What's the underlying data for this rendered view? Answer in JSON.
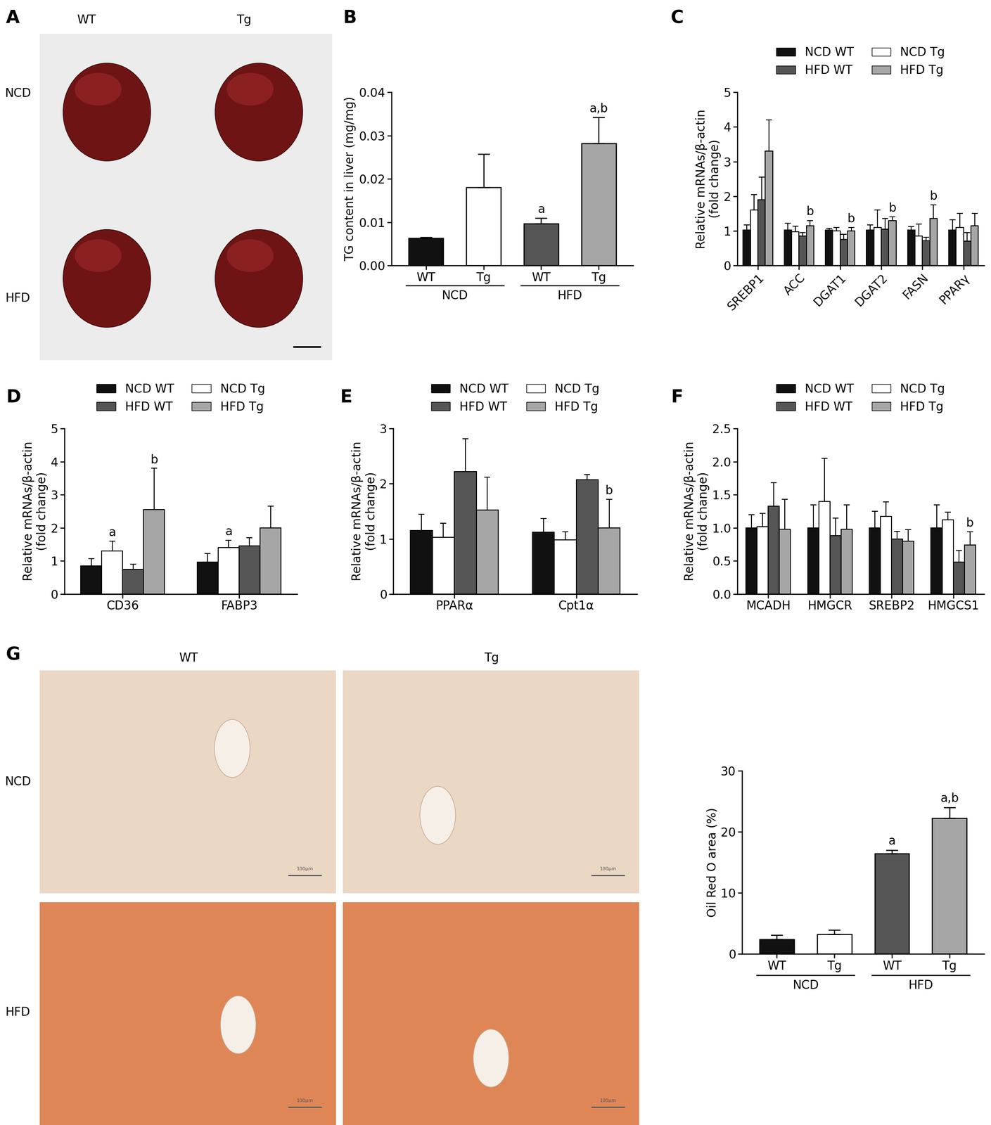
{
  "chart_data": [
    {
      "panel": "B",
      "type": "bar",
      "y_label": "TG content in liver (mg/mg)",
      "categories": [
        "WT",
        "Tg",
        "WT",
        "Tg"
      ],
      "groups": [
        "NCD",
        "HFD"
      ],
      "values": [
        0.0063,
        0.018,
        0.0097,
        0.0282
      ],
      "errors": [
        0.0002,
        0.0077,
        0.0012,
        0.006
      ],
      "significance": [
        null,
        null,
        "a",
        "a,b"
      ],
      "colors": [
        "#111111",
        "#ffffff",
        "#555555",
        "#a6a6a6"
      ],
      "ylim": [
        0,
        0.04
      ],
      "yticks": [
        {
          "value": 0,
          "label": "0.00"
        },
        {
          "value": 0.01,
          "label": "0.01"
        },
        {
          "value": 0.02,
          "label": "0.02"
        },
        {
          "value": 0.03,
          "label": "0.03"
        },
        {
          "value": 0.04,
          "label": "0.04"
        }
      ]
    },
    {
      "panel": "C",
      "type": "bar",
      "y_label": "Relative mRNAs/β-actin\n(fold change)",
      "categories": [
        "SREBP1",
        "ACC",
        "DGAT1",
        "DGAT2",
        "FASN",
        "PPARγ"
      ],
      "legend": "top",
      "series": [
        {
          "name": "NCD WT",
          "color": "#111111",
          "values": [
            1.02,
            1.02,
            1.02,
            1.02,
            1.02,
            1.02
          ],
          "errors": [
            0.15,
            0.2,
            0.05,
            0.15,
            0.1,
            0.3
          ],
          "significance": [
            null,
            null,
            null,
            null,
            null,
            null
          ]
        },
        {
          "name": "NCD Tg",
          "color": "#ffffff",
          "values": [
            1.6,
            0.98,
            1.0,
            1.1,
            0.85,
            1.1
          ],
          "errors": [
            0.45,
            0.15,
            0.1,
            0.5,
            0.35,
            0.4
          ],
          "significance": [
            null,
            null,
            null,
            null,
            null,
            null
          ]
        },
        {
          "name": "HFD WT",
          "color": "#555555",
          "values": [
            1.9,
            0.85,
            0.75,
            1.05,
            0.72,
            0.7
          ],
          "errors": [
            0.65,
            0.1,
            0.15,
            0.3,
            0.1,
            0.25
          ],
          "significance": [
            null,
            null,
            null,
            null,
            null,
            null
          ]
        },
        {
          "name": "HFD Tg",
          "color": "#a6a6a6",
          "values": [
            3.3,
            1.15,
            1.0,
            1.3,
            1.35,
            1.15
          ],
          "errors": [
            0.9,
            0.15,
            0.1,
            0.1,
            0.4,
            0.35
          ],
          "significance": [
            null,
            "b",
            "b",
            "b",
            "b",
            null
          ]
        }
      ],
      "ylim": [
        0,
        5
      ],
      "yticks": [
        0,
        1,
        2,
        3,
        4,
        5
      ]
    },
    {
      "panel": "D",
      "type": "bar",
      "y_label": "Relative mRNAs/β-actin\n(fold change)",
      "categories": [
        "CD36",
        "FABP3"
      ],
      "legend": "top",
      "series": [
        {
          "name": "NCD WT",
          "color": "#111111",
          "values": [
            0.85,
            0.97
          ],
          "errors": [
            0.22,
            0.25
          ],
          "significance": [
            null,
            null
          ]
        },
        {
          "name": "NCD Tg",
          "color": "#ffffff",
          "values": [
            1.3,
            1.4
          ],
          "errors": [
            0.3,
            0.22
          ],
          "significance": [
            "a",
            "a"
          ]
        },
        {
          "name": "HFD WT",
          "color": "#555555",
          "values": [
            0.75,
            1.45
          ],
          "errors": [
            0.15,
            0.25
          ],
          "significance": [
            null,
            null
          ]
        },
        {
          "name": "HFD Tg",
          "color": "#a6a6a6",
          "values": [
            2.55,
            2.0
          ],
          "errors": [
            1.25,
            0.65
          ],
          "significance": [
            "b",
            null
          ]
        }
      ],
      "ylim": [
        0,
        5
      ],
      "yticks": [
        0,
        1,
        2,
        3,
        4,
        5
      ]
    },
    {
      "panel": "E",
      "type": "bar",
      "y_label": "Relative mRNAs/β-actin\n(fold change)",
      "categories": [
        "PPARα",
        "Cpt1α"
      ],
      "legend": "top",
      "series": [
        {
          "name": "NCD WT",
          "color": "#111111",
          "values": [
            1.15,
            1.12
          ],
          "errors": [
            0.3,
            0.25
          ],
          "significance": [
            null,
            null
          ]
        },
        {
          "name": "NCD Tg",
          "color": "#ffffff",
          "values": [
            1.03,
            0.98
          ],
          "errors": [
            0.25,
            0.15
          ],
          "significance": [
            null,
            null
          ]
        },
        {
          "name": "HFD WT",
          "color": "#555555",
          "values": [
            2.22,
            2.07
          ],
          "errors": [
            0.6,
            0.1
          ],
          "significance": [
            null,
            null
          ]
        },
        {
          "name": "HFD Tg",
          "color": "#a6a6a6",
          "values": [
            1.52,
            1.2
          ],
          "errors": [
            0.6,
            0.52
          ],
          "significance": [
            null,
            "b"
          ]
        }
      ],
      "ylim": [
        0,
        3
      ],
      "yticks": [
        0,
        1,
        2,
        3
      ]
    },
    {
      "panel": "F",
      "type": "bar",
      "y_label": "Relative mRNAs/β-actin\n(fold change)",
      "categories": [
        "MCADH",
        "HMGCR",
        "SREBP2",
        "HMGCS1"
      ],
      "legend": "top",
      "series": [
        {
          "name": "NCD WT",
          "color": "#111111",
          "values": [
            1.0,
            1.0,
            1.0,
            1.0
          ],
          "errors": [
            0.2,
            0.35,
            0.25,
            0.35
          ],
          "significance": [
            null,
            null,
            null,
            null
          ]
        },
        {
          "name": "NCD Tg",
          "color": "#ffffff",
          "values": [
            1.02,
            1.4,
            1.17,
            1.12
          ],
          "errors": [
            0.2,
            0.65,
            0.22,
            0.12
          ],
          "significance": [
            null,
            null,
            null,
            null
          ]
        },
        {
          "name": "HFD WT",
          "color": "#555555",
          "values": [
            1.33,
            0.88,
            0.83,
            0.48
          ],
          "errors": [
            0.35,
            0.27,
            0.12,
            0.18
          ],
          "significance": [
            null,
            null,
            null,
            null
          ]
        },
        {
          "name": "HFD Tg",
          "color": "#a6a6a6",
          "values": [
            0.98,
            0.98,
            0.8,
            0.74
          ],
          "errors": [
            0.45,
            0.37,
            0.17,
            0.2
          ],
          "significance": [
            null,
            null,
            null,
            "b"
          ]
        }
      ],
      "ylim": [
        0,
        2.5
      ],
      "yticks": [
        {
          "value": 0,
          "label": "0.0"
        },
        {
          "value": 0.5,
          "label": "0.5"
        },
        {
          "value": 1,
          "label": "1.0"
        },
        {
          "value": 1.5,
          "label": "1.5"
        },
        {
          "value": 2,
          "label": "2.0"
        },
        {
          "value": 2.5,
          "label": "2.5"
        }
      ]
    },
    {
      "panel": "G",
      "type": "bar",
      "y_label": "Oil Red O area (%)",
      "categories": [
        "WT",
        "Tg",
        "WT",
        "Tg"
      ],
      "groups": [
        "NCD",
        "HFD"
      ],
      "values": [
        2.4,
        3.2,
        16.4,
        22.2
      ],
      "errors": [
        0.7,
        0.7,
        0.6,
        1.8
      ],
      "significance": [
        null,
        null,
        "a",
        "a,b"
      ],
      "colors": [
        "#111111",
        "#ffffff",
        "#555555",
        "#a6a6a6"
      ],
      "ylim": [
        0,
        30
      ],
      "yticks": [
        0,
        10,
        20,
        30
      ]
    }
  ],
  "images": [
    {
      "panel": "A",
      "columns": [
        "WT",
        "Tg"
      ],
      "rows": [
        "NCD",
        "HFD"
      ]
    },
    {
      "panel": "G",
      "columns": [
        "WT",
        "Tg"
      ],
      "rows": [
        "NCD",
        "HFD"
      ],
      "scale_bar": "100μm"
    }
  ]
}
